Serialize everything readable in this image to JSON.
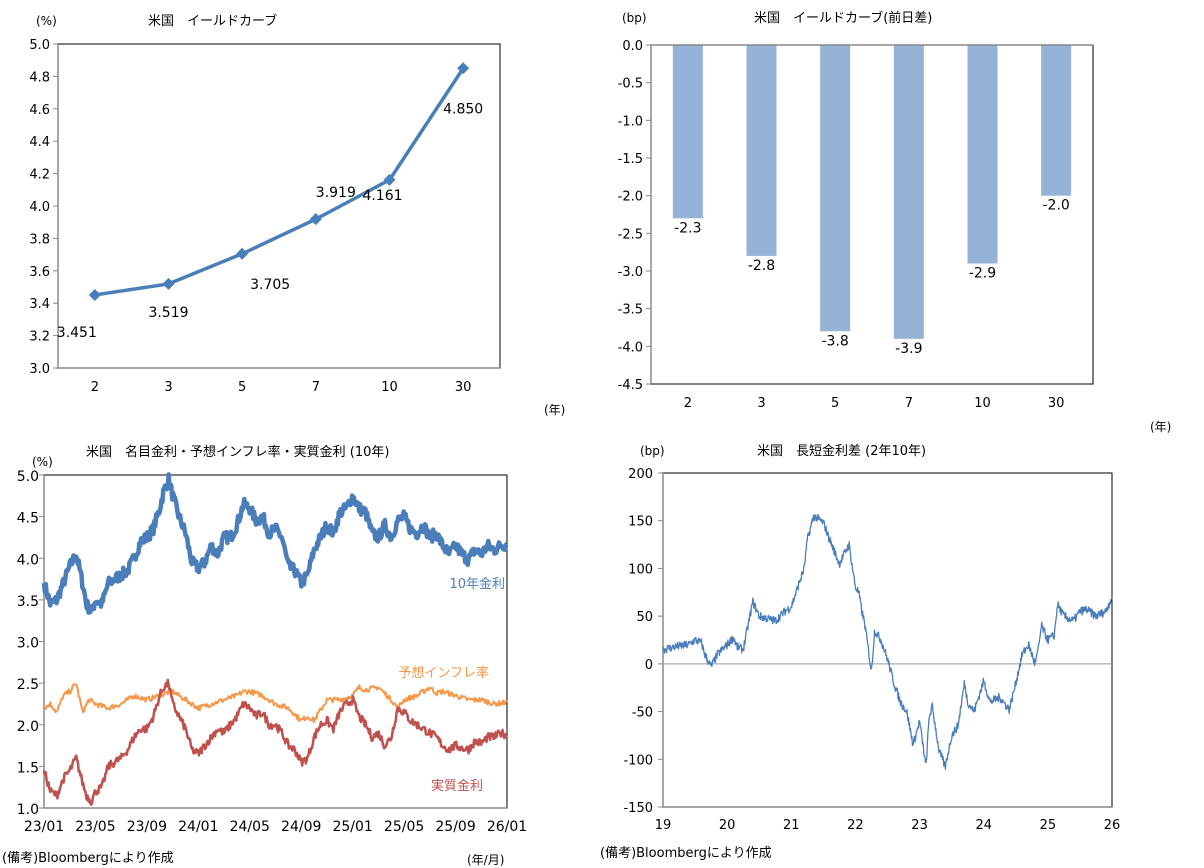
{
  "chart_data": [
    {
      "id": "yield-curve",
      "type": "line",
      "title": "米国　イールドカーブ",
      "ylabel": "(%)",
      "xlabel": "(年)",
      "categories": [
        "2",
        "3",
        "5",
        "7",
        "10",
        "30"
      ],
      "values": [
        3.451,
        3.519,
        3.705,
        3.919,
        4.161,
        4.85
      ],
      "data_labels": [
        "3.451",
        "3.519",
        "3.705",
        "3.919",
        "4.161",
        "4.850"
      ],
      "ylim": [
        3.0,
        5.0
      ],
      "yticks": [
        "5.0",
        "4.8",
        "4.6",
        "4.4",
        "4.2",
        "4.0",
        "3.8",
        "3.6",
        "3.4",
        "3.2",
        "3.0"
      ],
      "ytick_values": [
        5.0,
        4.8,
        4.6,
        4.4,
        4.2,
        4.0,
        3.8,
        3.6,
        3.4,
        3.2,
        3.0
      ],
      "marker": "diamond",
      "color": "#4a7ebb",
      "grid": false
    },
    {
      "id": "yield-curve-change",
      "type": "bar",
      "title": "米国　イールドカーブ(前日差)",
      "ylabel": "(bp)",
      "xlabel": "(年)",
      "categories": [
        "2",
        "3",
        "5",
        "7",
        "10",
        "30"
      ],
      "values": [
        -2.3,
        -2.8,
        -3.8,
        -3.9,
        -2.9,
        -2.0
      ],
      "data_labels": [
        "-2.3",
        "-2.8",
        "-3.8",
        "-3.9",
        "-2.9",
        "-2.0"
      ],
      "ylim": [
        -4.5,
        0.0
      ],
      "yticks": [
        "0.0",
        "-0.5",
        "-1.0",
        "-1.5",
        "-2.0",
        "-2.5",
        "-3.0",
        "-3.5",
        "-4.0",
        "-4.5"
      ],
      "ytick_values": [
        0.0,
        -0.5,
        -1.0,
        -1.5,
        -2.0,
        -2.5,
        -3.0,
        -3.5,
        -4.0,
        -4.5
      ],
      "color": "#95b3d7",
      "grid": false
    },
    {
      "id": "nominal-inflation-real",
      "type": "line",
      "title": "米国　名目金利・予想インフレ率・実質金利 (10年)",
      "ylabel": "(%)",
      "xlabel": "(年/月)",
      "x_ticks": [
        "23/01",
        "23/05",
        "23/09",
        "24/01",
        "24/05",
        "24/09",
        "25/01",
        "25/05",
        "25/09",
        "26/01"
      ],
      "x_range_months": [
        0,
        36
      ],
      "ylim": [
        1.0,
        5.0
      ],
      "yticks": [
        "5.0",
        "4.5",
        "4.0",
        "3.5",
        "3.0",
        "2.5",
        "2.0",
        "1.5",
        "1.0"
      ],
      "ytick_values": [
        5.0,
        4.5,
        4.0,
        3.5,
        3.0,
        2.5,
        2.0,
        1.5,
        1.0
      ],
      "series": [
        {
          "name": "10年金利",
          "color": "#4a7ebb",
          "x_months": [
            0,
            0.5,
            1,
            1.5,
            2,
            2.5,
            3,
            3.3,
            3.7,
            4,
            4.5,
            5,
            5.5,
            6,
            6.5,
            7,
            7.5,
            8,
            8.5,
            9,
            9.3,
            9.7,
            10,
            10.5,
            11,
            11.5,
            12,
            12.5,
            13,
            13.5,
            14,
            14.5,
            15,
            15.5,
            16,
            16.5,
            17,
            17.5,
            18,
            18.5,
            19,
            19.5,
            20,
            20.5,
            21,
            21.5,
            22,
            22.5,
            23,
            23.5,
            24,
            24.5,
            25,
            25.5,
            26,
            26.5,
            27,
            27.5,
            28,
            28.5,
            29,
            29.5,
            30,
            30.5,
            31,
            31.5,
            32,
            32.5,
            33,
            33.5,
            34,
            34.5,
            35,
            35.5,
            36
          ],
          "values": [
            3.7,
            3.45,
            3.5,
            3.7,
            3.9,
            4.05,
            3.7,
            3.45,
            3.35,
            3.5,
            3.45,
            3.7,
            3.75,
            3.8,
            3.85,
            4.0,
            4.2,
            4.25,
            4.35,
            4.6,
            4.8,
            4.95,
            4.75,
            4.5,
            4.3,
            3.95,
            3.88,
            3.95,
            4.15,
            4.05,
            4.25,
            4.25,
            4.4,
            4.65,
            4.6,
            4.45,
            4.5,
            4.3,
            4.35,
            4.25,
            3.9,
            3.85,
            3.7,
            3.8,
            4.1,
            4.25,
            4.4,
            4.3,
            4.55,
            4.6,
            4.75,
            4.6,
            4.55,
            4.3,
            4.25,
            4.4,
            4.25,
            4.45,
            4.5,
            4.35,
            4.3,
            4.4,
            4.25,
            4.3,
            4.15,
            4.05,
            4.15,
            4.05,
            3.98,
            4.1,
            4.05,
            4.15,
            4.1,
            4.15,
            4.17
          ]
        },
        {
          "name": "予想インフレ率",
          "color": "#f79646",
          "x_months": [
            0,
            0.5,
            1,
            1.5,
            2,
            2.5,
            3,
            3.5,
            4,
            5,
            6,
            7,
            8,
            9,
            9.5,
            10,
            11,
            12,
            13,
            14,
            15,
            15.5,
            16,
            17,
            18,
            19,
            20,
            20.5,
            21,
            22,
            23,
            24,
            24.5,
            25,
            26,
            27,
            27.5,
            28,
            29,
            30,
            30.5,
            31,
            32,
            33,
            34,
            35,
            36
          ],
          "values": [
            2.2,
            2.25,
            2.15,
            2.35,
            2.4,
            2.5,
            2.15,
            2.3,
            2.25,
            2.2,
            2.25,
            2.35,
            2.3,
            2.35,
            2.38,
            2.4,
            2.3,
            2.2,
            2.25,
            2.3,
            2.35,
            2.4,
            2.4,
            2.35,
            2.25,
            2.2,
            2.05,
            2.1,
            2.05,
            2.3,
            2.3,
            2.35,
            2.45,
            2.42,
            2.45,
            2.3,
            2.2,
            2.3,
            2.35,
            2.45,
            2.38,
            2.4,
            2.35,
            2.3,
            2.3,
            2.25,
            2.27
          ]
        },
        {
          "name": "実質金利",
          "color": "#c0504d",
          "x_months": [
            0,
            0.5,
            1,
            1.5,
            2,
            2.5,
            3,
            3.3,
            3.7,
            4,
            4.5,
            5,
            5.5,
            6,
            6.5,
            7,
            7.5,
            8,
            8.5,
            9,
            9.3,
            9.7,
            10,
            10.5,
            11,
            11.5,
            12,
            12.5,
            13,
            13.5,
            14,
            14.5,
            15,
            15.5,
            16,
            16.5,
            17,
            17.5,
            18,
            18.5,
            19,
            19.5,
            20,
            20.5,
            21,
            21.5,
            22,
            22.5,
            23,
            23.5,
            24,
            24.5,
            25,
            25.5,
            26,
            26.5,
            27,
            27.5,
            28,
            28.5,
            29,
            29.5,
            30,
            30.5,
            31,
            31.5,
            32,
            32.5,
            33,
            33.5,
            34,
            34.5,
            35,
            35.5,
            36
          ],
          "values": [
            1.45,
            1.2,
            1.15,
            1.35,
            1.45,
            1.6,
            1.3,
            1.15,
            1.08,
            1.2,
            1.25,
            1.5,
            1.55,
            1.6,
            1.7,
            1.85,
            1.95,
            1.95,
            2.1,
            2.35,
            2.45,
            2.5,
            2.25,
            2.1,
            1.95,
            1.7,
            1.65,
            1.75,
            1.85,
            1.95,
            1.9,
            2.0,
            2.1,
            2.25,
            2.2,
            2.1,
            2.15,
            2.0,
            2.0,
            1.9,
            1.75,
            1.7,
            1.55,
            1.6,
            1.85,
            2.0,
            2.05,
            1.95,
            2.15,
            2.25,
            2.3,
            2.1,
            2.0,
            1.85,
            1.9,
            1.75,
            1.85,
            2.2,
            2.15,
            2.05,
            2.0,
            1.95,
            1.9,
            1.85,
            1.75,
            1.7,
            1.75,
            1.72,
            1.7,
            1.8,
            1.78,
            1.85,
            1.85,
            1.9,
            1.88
          ]
        }
      ],
      "grid": false
    },
    {
      "id": "term-spread",
      "type": "line",
      "title": "米国　長短金利差 (2年10年)",
      "ylabel": "(bp)",
      "x_ticks": [
        "19",
        "20",
        "21",
        "22",
        "23",
        "24",
        "25",
        "26"
      ],
      "x_range_years": [
        0,
        7
      ],
      "ylim": [
        -150,
        200
      ],
      "yticks": [
        "200",
        "150",
        "100",
        "50",
        "0",
        "-50",
        "-100",
        "-150"
      ],
      "ytick_values": [
        200,
        150,
        100,
        50,
        0,
        -50,
        -100,
        -150
      ],
      "series": [
        {
          "name": "2年10年",
          "color": "#4a7ebb",
          "x_years": [
            0,
            0.2,
            0.4,
            0.5,
            0.6,
            0.65,
            0.75,
            0.85,
            1.0,
            1.1,
            1.15,
            1.25,
            1.4,
            1.5,
            1.6,
            1.75,
            1.9,
            2.0,
            2.1,
            2.2,
            2.25,
            2.35,
            2.5,
            2.6,
            2.75,
            2.9,
            3.0,
            3.05,
            3.1,
            3.15,
            3.25,
            3.3,
            3.4,
            3.5,
            3.6,
            3.7,
            3.8,
            3.9,
            4.0,
            4.1,
            4.15,
            4.2,
            4.3,
            4.4,
            4.5,
            4.6,
            4.7,
            4.75,
            4.85,
            5.0,
            5.1,
            5.25,
            5.4,
            5.5,
            5.6,
            5.7,
            5.8,
            5.85,
            5.9,
            6.0,
            6.1,
            6.15,
            6.25,
            6.4,
            6.5,
            6.6,
            6.75,
            6.9,
            7.0
          ],
          "values": [
            15,
            18,
            20,
            25,
            22,
            10,
            -3,
            10,
            20,
            28,
            18,
            15,
            65,
            50,
            48,
            45,
            55,
            60,
            80,
            100,
            130,
            155,
            148,
            130,
            105,
            125,
            80,
            75,
            55,
            40,
            -8,
            35,
            25,
            5,
            -20,
            -40,
            -50,
            -85,
            -60,
            -108,
            -55,
            -45,
            -90,
            -108,
            -75,
            -65,
            -20,
            -40,
            -50,
            -18,
            -40,
            -35,
            -48,
            -20,
            10,
            20,
            0,
            15,
            40,
            25,
            30,
            62,
            50,
            45,
            55,
            57,
            50,
            55,
            70
          ]
        }
      ],
      "grid": false
    }
  ],
  "notes": {
    "source_left": "(備考)Bloombergにより作成",
    "source_right": "(備考)Bloombergにより作成"
  },
  "legend_labels": {
    "nominal": "10年金利",
    "inflation": "予想インフレ率",
    "real": "実質金利"
  }
}
